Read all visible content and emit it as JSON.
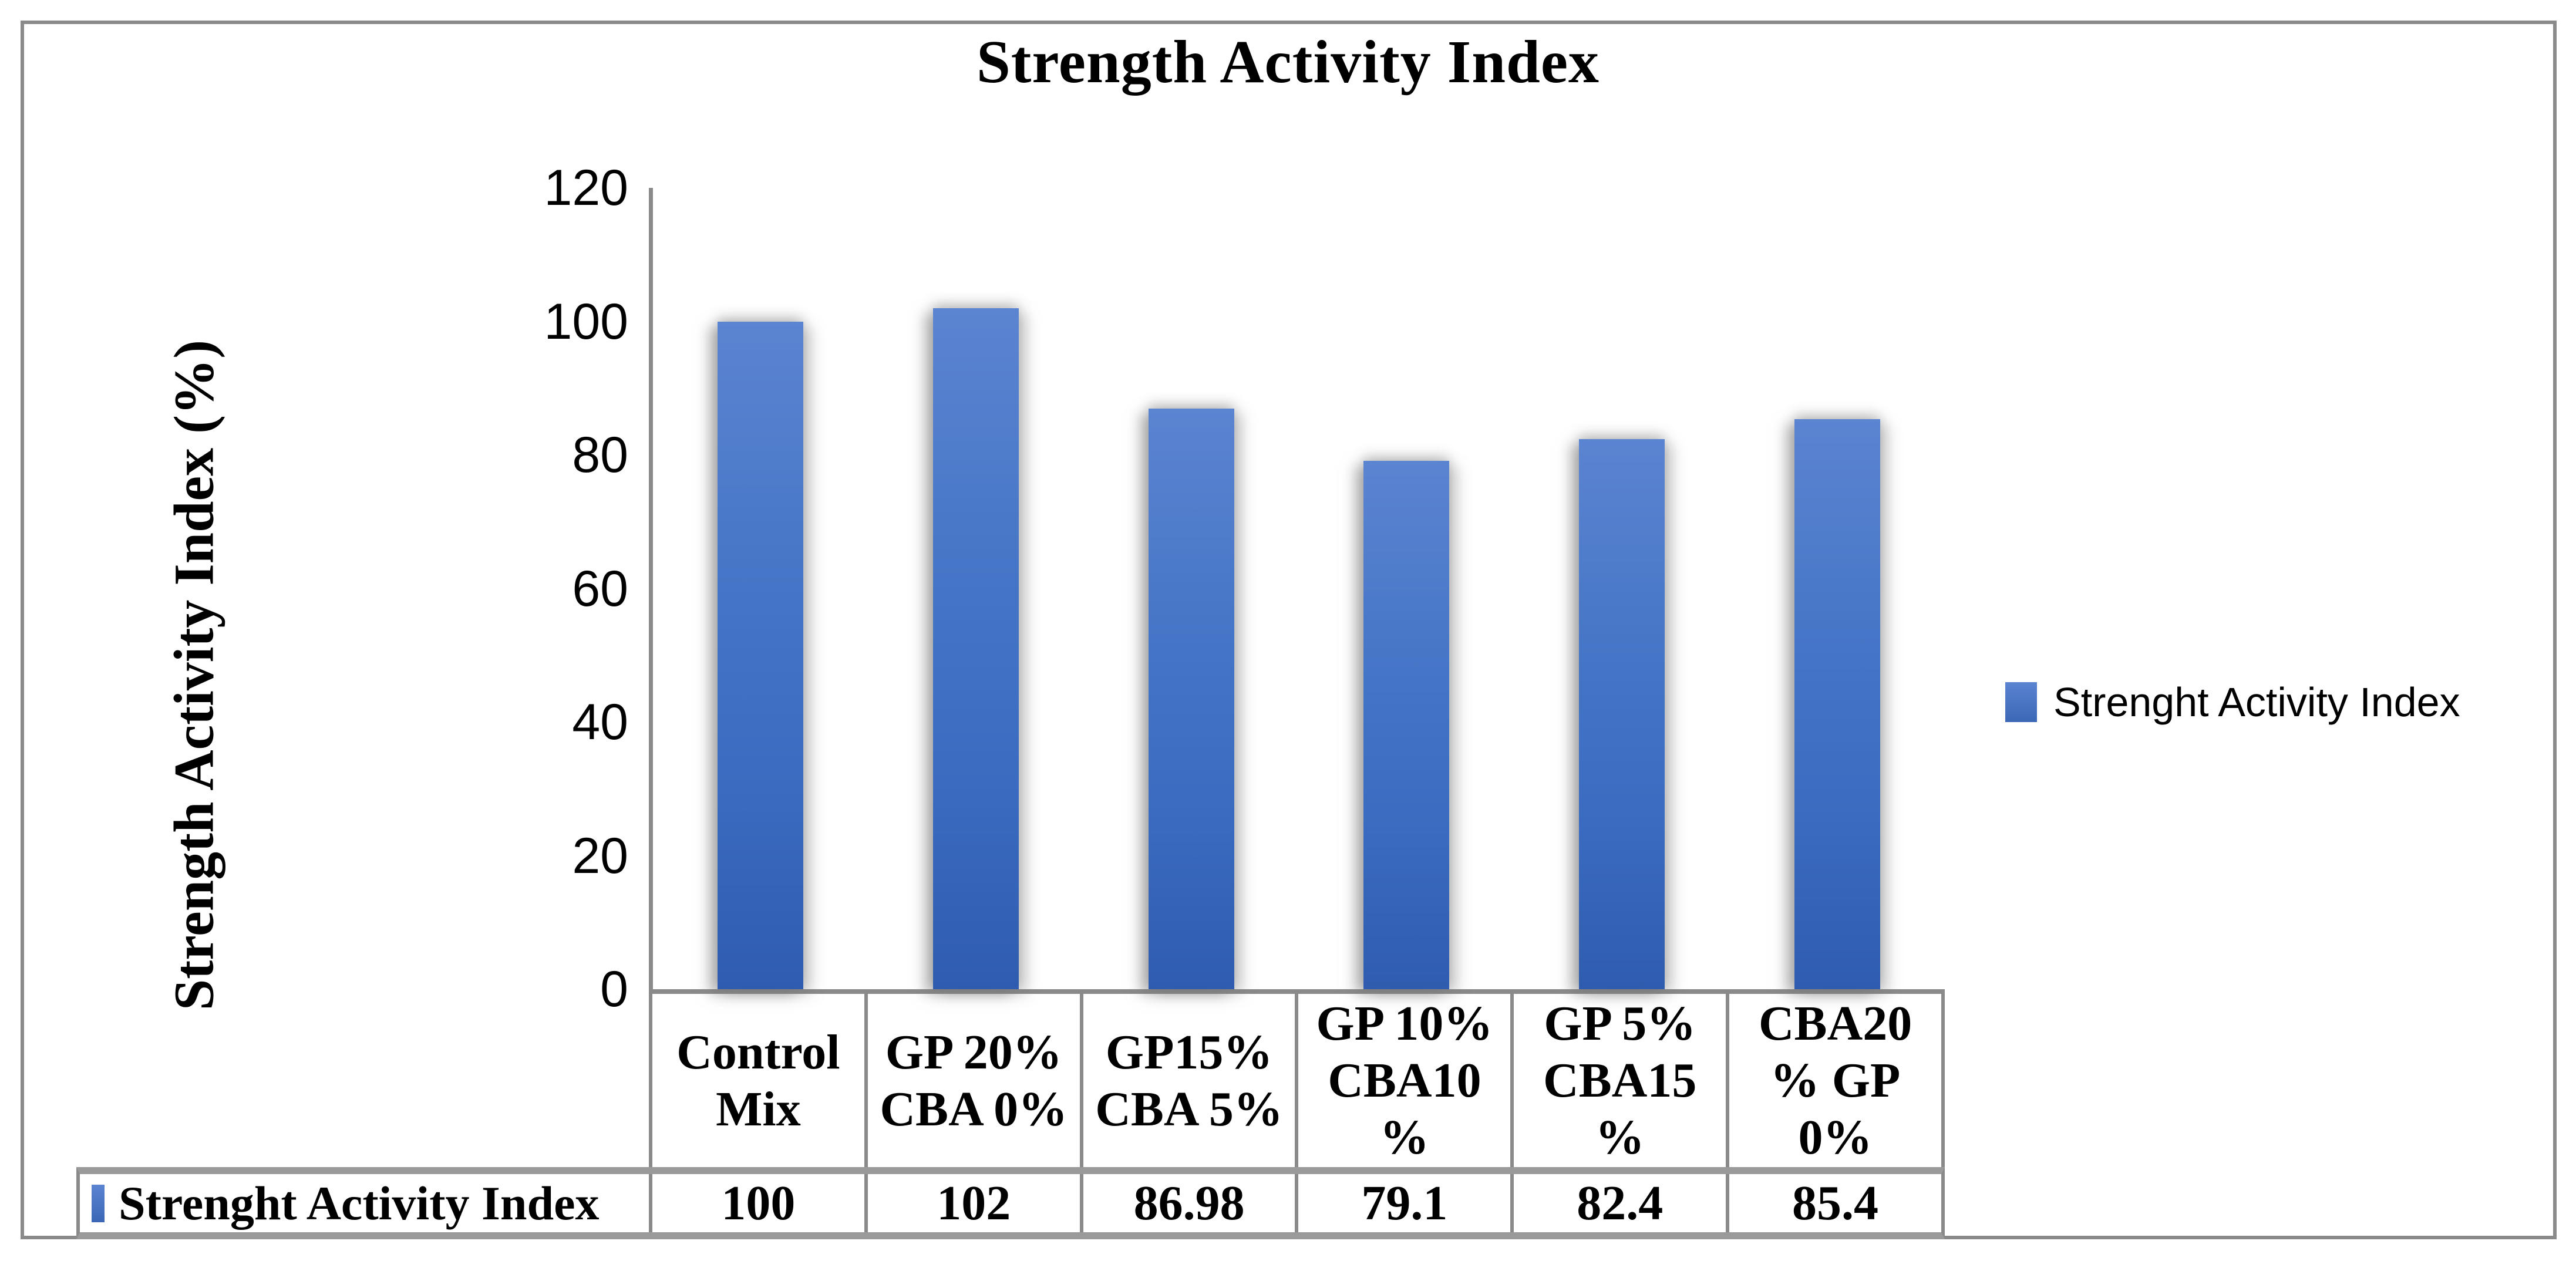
{
  "title": "Strength Activity Index",
  "y_axis_title": "Strength Activity Index (%)",
  "legend": {
    "label": "Strenght Activity Index",
    "marker_color": "#4472c4"
  },
  "table": {
    "row_header": "Strenght Activity Index",
    "values": [
      "100",
      "102",
      "86.98",
      "79.1",
      "82.4",
      "85.4"
    ]
  },
  "colors": {
    "bar_top": "#5b84d1",
    "bar_bottom": "#2f5cae",
    "axis_line": "#8a8a8a",
    "frame_border": "#8a8a8a"
  },
  "chart_data": {
    "type": "bar",
    "title": "Strength Activity Index",
    "series": [
      {
        "name": "Strenght Activity Index",
        "values": [
          100,
          102,
          86.98,
          79.1,
          82.4,
          85.4
        ]
      }
    ],
    "categories": [
      "Control\nMix",
      "GP 20%\nCBA 0%",
      "GP15%\nCBA 5%",
      "GP 10%\nCBA10\n%",
      "GP 5%\nCBA15\n%",
      "CBA20\n% GP\n0%"
    ],
    "value_labels": [
      "100",
      "102",
      "86.98",
      "79.1",
      "82.4",
      "85.4"
    ],
    "xlabel": "",
    "ylabel": "Strength Activity Index (%)",
    "ylim": [
      0,
      120
    ],
    "yticks": [
      0,
      20,
      40,
      60,
      80,
      100,
      120
    ],
    "grid": false,
    "legend_position": "right",
    "bar_color": "#4472c4",
    "data_table_shown": true
  }
}
